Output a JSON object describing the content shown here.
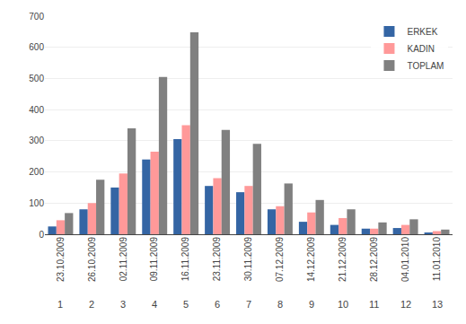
{
  "chart_data": {
    "type": "bar",
    "categories": [
      "23.10.2009",
      "26.10.2009",
      "02.11.2009",
      "09.11.2009",
      "16.11.2009",
      "23.11.2009",
      "30.11.2009",
      "07.12.2009",
      "14.12.2009",
      "21.12.2009",
      "28.12.2009",
      "04.01.2010",
      "11.01.2010"
    ],
    "category_numbers": [
      "1",
      "2",
      "3",
      "4",
      "5",
      "6",
      "7",
      "8",
      "9",
      "10",
      "11",
      "12",
      "13"
    ],
    "series": [
      {
        "name": "ERKEK",
        "color": "#3465A4",
        "values": [
          25,
          80,
          150,
          240,
          305,
          155,
          135,
          80,
          40,
          30,
          18,
          20,
          5
        ]
      },
      {
        "name": "KADIN",
        "color": "#FF9999",
        "values": [
          45,
          100,
          195,
          265,
          350,
          180,
          155,
          90,
          70,
          52,
          18,
          30,
          10
        ]
      },
      {
        "name": "TOPLAM",
        "color": "#808080",
        "values": [
          68,
          175,
          340,
          505,
          648,
          335,
          290,
          163,
          110,
          80,
          38,
          48,
          15
        ]
      }
    ],
    "ylim": [
      0,
      700
    ],
    "yticks": [
      0,
      100,
      200,
      300,
      400,
      500,
      600,
      700
    ],
    "grid": true,
    "legend": "upper right"
  }
}
